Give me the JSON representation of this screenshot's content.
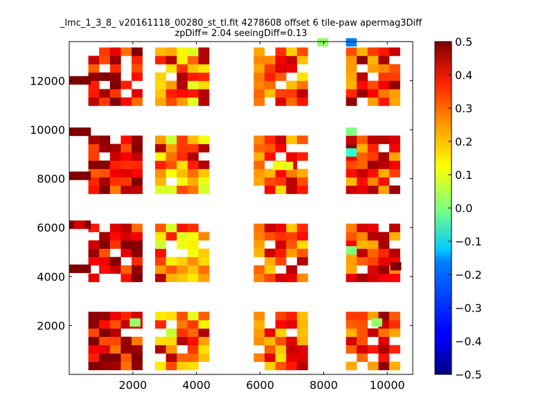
{
  "chart_data": {
    "type": "heatmap",
    "title": "_lmc_1_3_8_ v20161118_00280_st_tl.fit 4278608 offset 6 tile-paw apermag3Diff",
    "subtitle": "zpDiff= 2.04 seeingDiff=0.13",
    "xlim": [
      0,
      10800
    ],
    "ylim": [
      0,
      13600
    ],
    "cell_size": 340,
    "x_ticks": [
      2000,
      4000,
      6000,
      8000,
      10000
    ],
    "x_tick_labels": [
      "2000",
      "4000",
      "6000",
      "8000",
      "10000"
    ],
    "y_ticks": [
      2000,
      4000,
      6000,
      8000,
      10000,
      12000
    ],
    "y_tick_labels": [
      "2000",
      "4000",
      "6000",
      "8000",
      "10000",
      "12000"
    ],
    "colorbar": {
      "cmap": "jet",
      "range": [
        -0.5,
        0.5
      ],
      "ticks": [
        -0.5,
        -0.4,
        -0.3,
        -0.2,
        -0.1,
        0.0,
        0.1,
        0.2,
        0.3,
        0.4,
        0.5
      ],
      "tick_labels": [
        "−0.5",
        "−0.4",
        "−0.3",
        "−0.2",
        "−0.1",
        "0.0",
        "0.1",
        "0.2",
        "0.3",
        "0.4",
        "0.5"
      ]
    },
    "detectors": [
      {
        "col": 0,
        "y": [
          350,
          2450
        ]
      },
      {
        "col": 1,
        "y": [
          350,
          2450
        ]
      },
      {
        "col": 2,
        "y": [
          350,
          2450
        ]
      },
      {
        "col": 3,
        "y": [
          350,
          2450
        ]
      },
      {
        "col": 0,
        "y": [
          3950,
          6050
        ]
      },
      {
        "col": 1,
        "y": [
          3950,
          6050
        ]
      },
      {
        "col": 2,
        "y": [
          3950,
          6050
        ]
      },
      {
        "col": 3,
        "y": [
          3950,
          6050
        ]
      },
      {
        "col": 0,
        "y": [
          7550,
          9650
        ]
      },
      {
        "col": 1,
        "y": [
          7550,
          9650
        ]
      },
      {
        "col": 2,
        "y": [
          7550,
          9650
        ]
      },
      {
        "col": 3,
        "y": [
          7550,
          9650
        ]
      },
      {
        "col": 0,
        "y": [
          11150,
          13250
        ]
      },
      {
        "col": 1,
        "y": [
          11150,
          13250
        ]
      },
      {
        "col": 2,
        "y": [
          11150,
          13250
        ]
      },
      {
        "col": 3,
        "y": [
          11150,
          13250
        ]
      }
    ],
    "detector_columns": [
      {
        "x_start": 0,
        "cells": 5,
        "base": 0.4,
        "drop_low_x": true
      },
      {
        "x_start": 2700,
        "cells": 5,
        "base": 0.22,
        "drop_low_x": false
      },
      {
        "x_start": 5800,
        "cells": 5,
        "base": 0.3,
        "drop_low_x": false
      },
      {
        "x_start": 8700,
        "cells": 5,
        "base": 0.34,
        "drop_low_x": false
      }
    ],
    "special_cells": [
      {
        "x": 7800,
        "y": 13400,
        "value": 0.02
      },
      {
        "x": 8700,
        "y": 13400,
        "value": -0.25
      },
      {
        "x": 8700,
        "y": 9750,
        "value": 0.0
      },
      {
        "x": 8700,
        "y": 8900,
        "value": -0.08
      },
      {
        "x": 8700,
        "y": 4900,
        "value": 0.0
      },
      {
        "x": 1900,
        "y": 1950,
        "value": 0.02
      },
      {
        "x": 9500,
        "y": 1950,
        "value": 0.02
      },
      {
        "x": 10100,
        "y": 4250,
        "value": 0.5
      },
      {
        "x": 150,
        "y": 4150,
        "value": 0.5
      },
      {
        "x": 150,
        "y": 5950,
        "value": 0.42
      },
      {
        "x": 6700,
        "y": 8350,
        "value": 0.1
      },
      {
        "x": 6400,
        "y": 8350,
        "value": 0.12
      }
    ]
  }
}
